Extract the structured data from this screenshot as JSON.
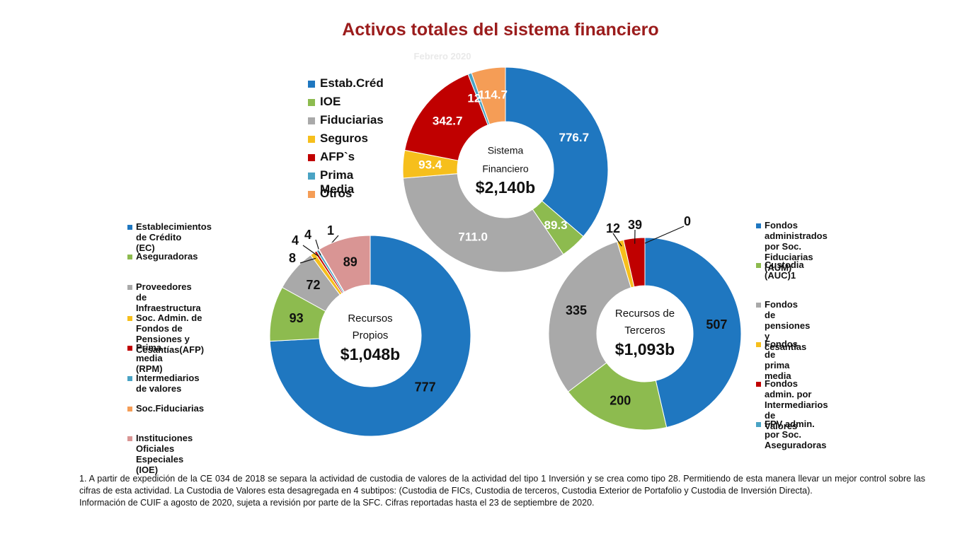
{
  "header": {
    "title": "Activos totales del sistema financiero",
    "subtitle": "Febrero 2020"
  },
  "chart_data": [
    {
      "type": "donut",
      "center_lines": [
        "Sistema",
        "Financiero"
      ],
      "center_total": "$2,140b",
      "categories": [
        "Estab.Créd",
        "IOE",
        "Fiduciarias",
        "Seguros",
        "AFP`s",
        "Prima Media",
        "Otros"
      ],
      "values": [
        776.7,
        89.3,
        711.0,
        93.4,
        342.7,
        12.5,
        114.7
      ],
      "labels": [
        "776.7",
        "89.3",
        "711.0",
        "93.4",
        "342.7",
        "12.5",
        "114.7"
      ],
      "colors": [
        "#1f77c0",
        "#8dbb4f",
        "#a9a9a9",
        "#f6bf1c",
        "#c00000",
        "#4aa3c4",
        "#f59d56"
      ]
    },
    {
      "type": "donut",
      "center_lines": [
        "Recursos",
        "Propios"
      ],
      "center_total": "$1,048b",
      "categories": [
        "Establecimientos de Crédito (EC)",
        "Aseguradoras",
        "Proveedores de Infraestructura",
        "Soc. Admin. de Fondos de Pensiones y Cesantías(AFP)",
        "Prima media (RPM)",
        "Intermediarios de valores",
        "Soc.Fiduciarias",
        "Instituciones Oficiales Especiales (IOE)"
      ],
      "values": [
        777,
        93,
        72,
        8,
        4,
        4,
        1,
        89
      ],
      "labels": [
        "777",
        "93",
        "72",
        "8",
        "4",
        "4",
        "1",
        "89"
      ],
      "colors": [
        "#1f77c0",
        "#8dbb4f",
        "#a9a9a9",
        "#f6bf1c",
        "#c00000",
        "#4aa3c4",
        "#f59d56",
        "#d99594"
      ]
    },
    {
      "type": "donut",
      "center_lines": [
        "Recursos de",
        "Terceros"
      ],
      "center_total": "$1,093b",
      "categories": [
        "Fondos administrados por Soc. Fiduciarias (AUM)",
        "Custodia (AUC)1",
        "Fondos de pensiones y cesantías",
        "Fondos de prima media",
        "Fondos admin. por Intermediarios de Valores",
        "FPV admin. por Soc. Aseguradoras"
      ],
      "values": [
        507,
        200,
        335,
        12,
        39,
        0
      ],
      "labels": [
        "507",
        "200",
        "335",
        "12",
        "39",
        "0"
      ],
      "colors": [
        "#1f77c0",
        "#8dbb4f",
        "#a9a9a9",
        "#f6bf1c",
        "#c00000",
        "#4aa3c4"
      ]
    }
  ],
  "legends": {
    "top": [
      "Estab.Créd",
      "IOE",
      "Fiduciarias",
      "Seguros",
      "AFP`s",
      "Prima Media",
      "Otros"
    ],
    "left": [
      [
        "Establecimientos de Crédito",
        "(EC)"
      ],
      [
        "Aseguradoras"
      ],
      [
        "Proveedores de",
        "Infraestructura"
      ],
      [
        "Soc. Admin. de Fondos de",
        "Pensiones y Cesantías(AFP)"
      ],
      [
        "Prima media (RPM)"
      ],
      [
        "Intermediarios de valores"
      ],
      [
        "Soc.Fiduciarias"
      ],
      [
        "Instituciones Oficiales",
        "Especiales (IOE)"
      ]
    ],
    "right": [
      [
        "Fondos administrados",
        "por Soc. Fiduciarias",
        "(AUM)"
      ],
      [
        "Custodia (AUC)1"
      ],
      [
        "Fondos de pensiones y",
        "cesantías"
      ],
      [
        "Fondos de prima media"
      ],
      [
        "Fondos admin. por",
        "Intermediarios de",
        "Valores"
      ],
      [
        "FPV admin. por Soc.",
        "Aseguradoras"
      ]
    ]
  },
  "footnote": {
    "line1": "1. A partir de expedición de la CE 034 de 2018 se separa la actividad de custodia de valores de la actividad del tipo 1 Inversión y se crea como tipo 28. Permitiendo de esta manera llevar un mejor control sobre las cifras de esta actividad. La Custodia de Valores esta desagregada en 4 subtipos: (Custodia de FICs, Custodia de terceros, Custodia Exterior de Portafolio y Custodia de Inversión Directa).",
    "line2": "Información de CUIF a agosto de 2020, sujeta a revisión por parte de la SFC. Cifras reportadas hasta el 23 de septiembre de 2020."
  }
}
